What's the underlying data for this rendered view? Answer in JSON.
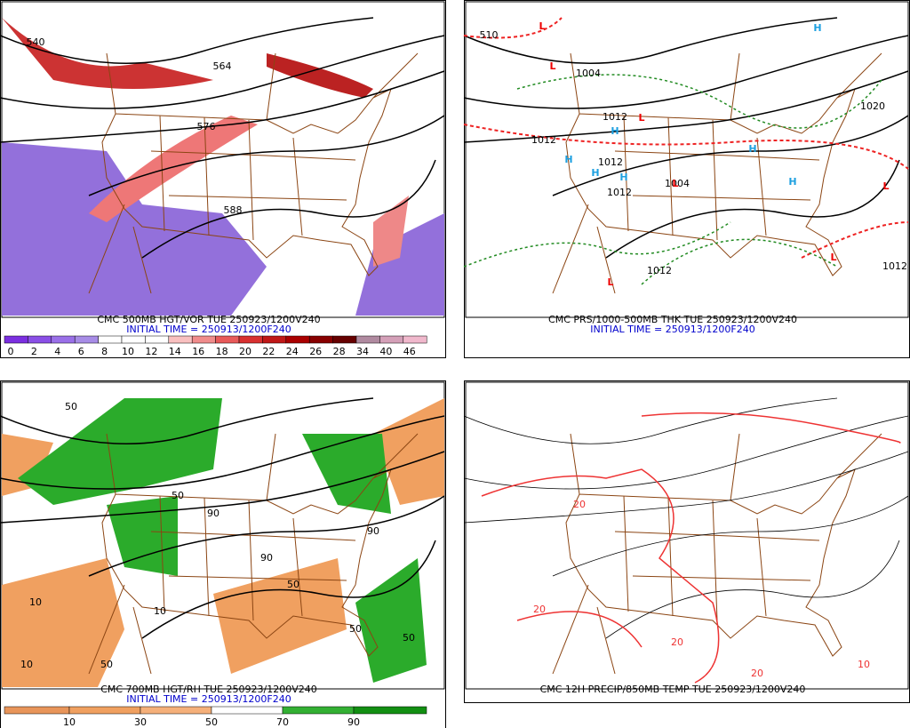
{
  "panels": [
    {
      "caption": "CMC 500MB HGT/VOR TUE 250923/1200V240",
      "initial_time": "INITIAL TIME = 250913/1200F240",
      "contour_labels": [
        540,
        564,
        576,
        588
      ],
      "colorbar": [
        0,
        2,
        4,
        6,
        8,
        10,
        12,
        14,
        16,
        18,
        20,
        22,
        24,
        26,
        28,
        34,
        40,
        46
      ]
    },
    {
      "caption": "CMC PRS/1000-500MB THK TUE 250923/1200V240",
      "initial_time": "INITIAL TIME = 250913/1200F240",
      "contour_labels": [
        510,
        1004,
        1012,
        1012,
        1012,
        1012,
        1004,
        1012,
        1020,
        1012
      ],
      "lows": [
        "L",
        "L",
        "L",
        "L",
        "L",
        "L",
        "L"
      ],
      "highs": [
        "H",
        "H",
        "H",
        "H",
        "H",
        "H",
        "H"
      ]
    },
    {
      "caption": "CMC 700MB HGT/RH TUE 250923/1200V240",
      "initial_time": "INITIAL TIME = 250913/1200F240",
      "contour_labels": [
        50,
        50,
        10,
        90,
        50,
        10,
        90,
        50,
        10,
        50,
        90,
        50
      ],
      "colorbar": [
        10,
        30,
        50,
        70,
        90
      ]
    },
    {
      "caption": "CMC 12H PRECIP/850MB TEMP TUE 250923/1200V240",
      "contour_labels": [
        20,
        20,
        20,
        20,
        10
      ]
    }
  ]
}
